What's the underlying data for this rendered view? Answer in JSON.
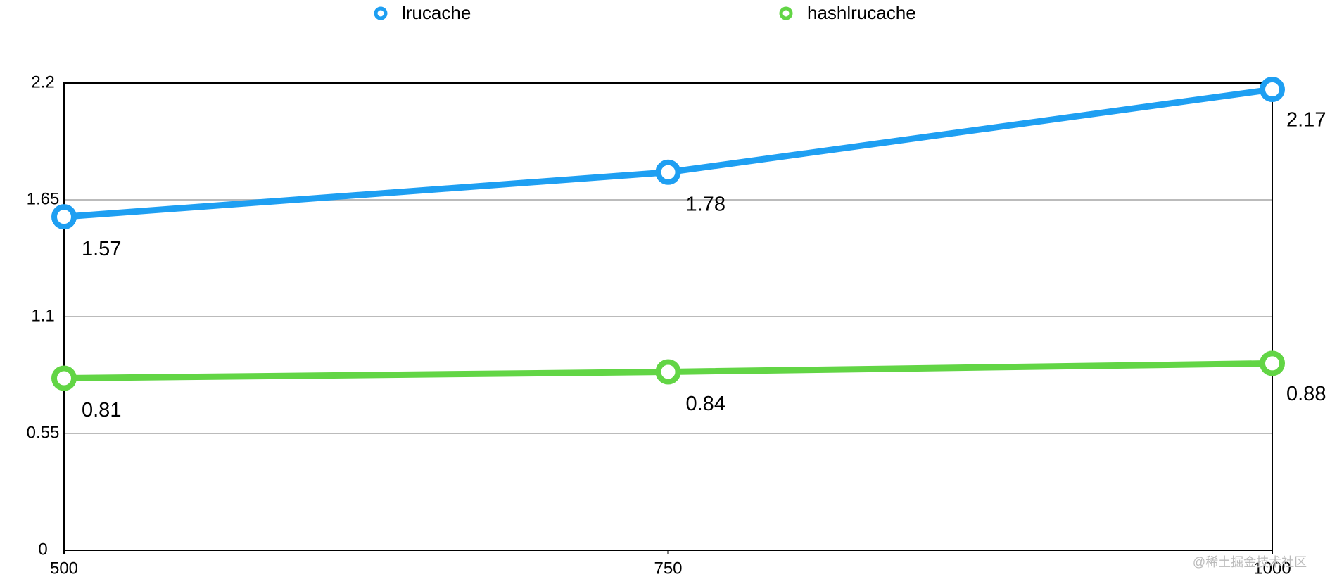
{
  "chart_data": {
    "type": "line",
    "x": [
      500,
      750,
      1000
    ],
    "xlim": [
      500,
      1000
    ],
    "xticks": [
      500,
      750,
      1000
    ],
    "ylim": [
      0,
      2.2
    ],
    "yticks": [
      0,
      0.55,
      1.1,
      1.65,
      2.2
    ],
    "grid": true,
    "legend": "top",
    "series": [
      {
        "name": "lrucache",
        "color": "#1e9ff2",
        "values": [
          1.57,
          1.78,
          2.17
        ]
      },
      {
        "name": "hashlrucache",
        "color": "#62d545",
        "values": [
          0.81,
          0.84,
          0.88
        ]
      }
    ]
  },
  "watermark": "@稀土掘金技术社区"
}
